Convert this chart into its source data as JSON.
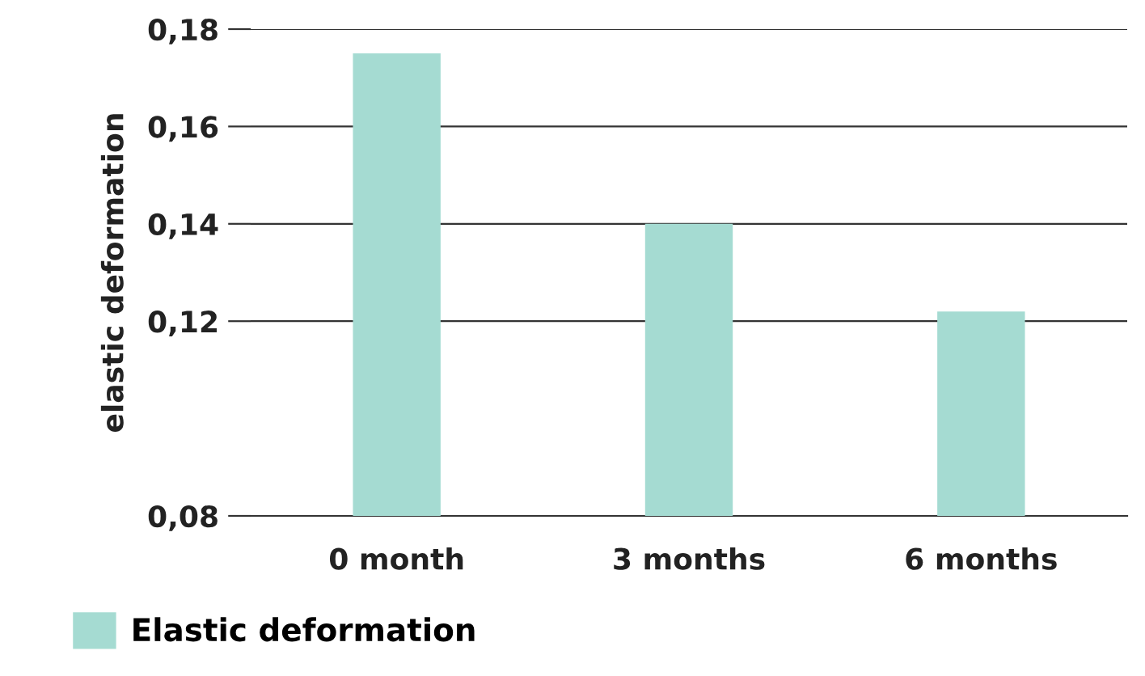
{
  "chart_data": {
    "type": "bar",
    "ylabel": "elastic deformation",
    "categories": [
      "0 month",
      "3 months",
      "6 months"
    ],
    "series": [
      {
        "name": "Elastic deformation",
        "color": "#a5dbd2",
        "values": [
          0.175,
          0.14,
          0.122
        ]
      }
    ],
    "ylim": [
      0.08,
      0.18
    ],
    "yticks": [
      {
        "value": 0.08,
        "label": "0,08"
      },
      {
        "value": 0.12,
        "label": "0,12"
      },
      {
        "value": 0.14,
        "label": "0,14"
      },
      {
        "value": 0.16,
        "label": "0,16"
      },
      {
        "value": 0.18,
        "label": "0,18"
      }
    ],
    "grid": "y",
    "legend": "bottom left"
  }
}
